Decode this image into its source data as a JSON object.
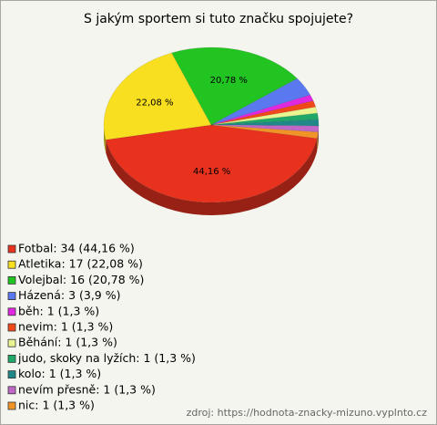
{
  "chart_data": {
    "type": "pie",
    "title": "S jakým sportem si tuto značku spojujete?",
    "categories": [
      "Fotbal: 34 (44,16 %)",
      "Atletika: 17 (22,08 %)",
      "Volejbal: 16 (20,78 %)",
      "Házená: 3 (3,9 %)",
      "běh: 1 (1,3 %)",
      "nevim: 1 (1,3 %)",
      "Běhání: 1 (1,3 %)",
      "judo, skoky na lyžích: 1 (1,3 %)",
      "kolo: 1 (1,3 %)",
      "nevím přesně: 1 (1,3 %)",
      "nic: 1 (1,3 %)"
    ],
    "values": [
      44.16,
      22.08,
      20.78,
      3.9,
      1.3,
      1.3,
      1.3,
      1.3,
      1.3,
      1.3,
      1.3
    ],
    "value_labels": [
      "44,16 %",
      "22,08 %",
      "20,78 %",
      null,
      null,
      null,
      null,
      null,
      null,
      null,
      null
    ],
    "colors": [
      "#e8321e",
      "#f8e020",
      "#22c422",
      "#5a78f0",
      "#e028e0",
      "#f04818",
      "#e8f590",
      "#20a868",
      "#208888",
      "#c068c8",
      "#f09428"
    ],
    "source": "zdroj: https://hodnota-znacky-mizuno.vyplnto.cz"
  }
}
